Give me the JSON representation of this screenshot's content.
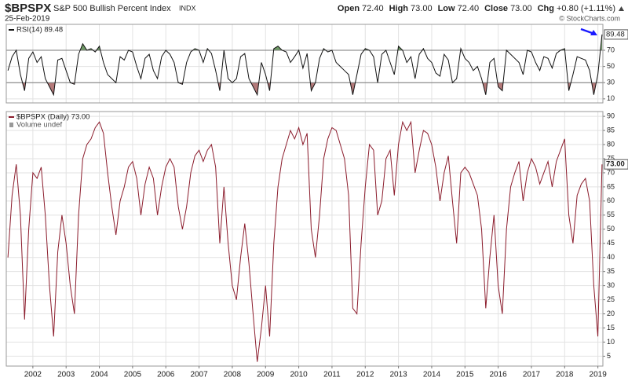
{
  "header": {
    "symbol": "$BPSPX",
    "name": "S&P 500 Bullish Percent Index",
    "exchange": "INDX",
    "date": "25-Feb-2019",
    "quote": [
      {
        "label": "Open",
        "value": "72.40"
      },
      {
        "label": "High",
        "value": "73.00"
      },
      {
        "label": "Low",
        "value": "72.40"
      },
      {
        "label": "Close",
        "value": "73.00"
      },
      {
        "label": "Chg",
        "value": "+0.80 (+1.11%)"
      }
    ],
    "credit": "© StockCharts.com"
  },
  "chart_data": [
    {
      "type": "line",
      "xlim": [
        2001.2,
        2019.15
      ],
      "ylim": [
        5,
        102
      ],
      "yticks": [
        10,
        30,
        50,
        70
      ],
      "grid": true,
      "thresholds": [
        30,
        70
      ],
      "overbought_color": "#6f9a66",
      "oversold_color": "#b57a7a",
      "x": [
        2001.25,
        2001.375,
        2001.5,
        2001.625,
        2001.75,
        2001.875,
        2002,
        2002.125,
        2002.25,
        2002.375,
        2002.5,
        2002.625,
        2002.75,
        2002.875,
        2003,
        2003.125,
        2003.25,
        2003.375,
        2003.5,
        2003.625,
        2003.75,
        2003.875,
        2004,
        2004.125,
        2004.25,
        2004.375,
        2004.5,
        2004.625,
        2004.75,
        2004.875,
        2005,
        2005.125,
        2005.25,
        2005.375,
        2005.5,
        2005.625,
        2005.75,
        2005.875,
        2006,
        2006.125,
        2006.25,
        2006.375,
        2006.5,
        2006.625,
        2006.75,
        2006.875,
        2007,
        2007.125,
        2007.25,
        2007.375,
        2007.5,
        2007.625,
        2007.75,
        2007.875,
        2008,
        2008.125,
        2008.25,
        2008.375,
        2008.5,
        2008.625,
        2008.75,
        2008.875,
        2009,
        2009.125,
        2009.25,
        2009.375,
        2009.5,
        2009.625,
        2009.75,
        2009.875,
        2010,
        2010.125,
        2010.25,
        2010.375,
        2010.5,
        2010.625,
        2010.75,
        2010.875,
        2011,
        2011.125,
        2011.25,
        2011.375,
        2011.5,
        2011.625,
        2011.75,
        2011.875,
        2012,
        2012.125,
        2012.25,
        2012.375,
        2012.5,
        2012.625,
        2012.75,
        2012.875,
        2013,
        2013.125,
        2013.25,
        2013.375,
        2013.5,
        2013.625,
        2013.75,
        2013.875,
        2014,
        2014.125,
        2014.25,
        2014.375,
        2014.5,
        2014.625,
        2014.75,
        2014.875,
        2015,
        2015.125,
        2015.25,
        2015.375,
        2015.5,
        2015.625,
        2015.75,
        2015.875,
        2016,
        2016.125,
        2016.25,
        2016.375,
        2016.5,
        2016.625,
        2016.75,
        2016.875,
        2017,
        2017.125,
        2017.25,
        2017.375,
        2017.5,
        2017.625,
        2017.75,
        2017.875,
        2018,
        2018.125,
        2018.25,
        2018.375,
        2018.5,
        2018.625,
        2018.75,
        2018.875,
        2019,
        2019.125
      ],
      "series": [
        {
          "name": "RSI(14) 89.48",
          "color": "#111111",
          "values": [
            45,
            62,
            70,
            40,
            20,
            60,
            68,
            55,
            62,
            35,
            25,
            15,
            58,
            60,
            45,
            30,
            28,
            65,
            78,
            70,
            72,
            68,
            75,
            55,
            40,
            35,
            30,
            62,
            58,
            70,
            68,
            50,
            35,
            60,
            65,
            45,
            35,
            62,
            70,
            65,
            55,
            30,
            28,
            55,
            68,
            72,
            70,
            55,
            72,
            66,
            45,
            20,
            70,
            35,
            30,
            35,
            62,
            66,
            35,
            25,
            15,
            55,
            40,
            20,
            72,
            75,
            70,
            68,
            55,
            62,
            70,
            48,
            66,
            20,
            30,
            60,
            72,
            68,
            70,
            55,
            50,
            45,
            40,
            15,
            40,
            65,
            72,
            70,
            62,
            30,
            65,
            70,
            55,
            40,
            75,
            70,
            55,
            62,
            35,
            65,
            72,
            60,
            55,
            42,
            38,
            65,
            58,
            30,
            35,
            72,
            60,
            55,
            45,
            50,
            35,
            15,
            55,
            60,
            25,
            20,
            70,
            65,
            60,
            55,
            40,
            70,
            68,
            55,
            45,
            62,
            60,
            48,
            66,
            70,
            72,
            20,
            40,
            62,
            60,
            58,
            45,
            15,
            40,
            89.48
          ]
        }
      ]
    },
    {
      "type": "line",
      "xlim": [
        2001.2,
        2019.15
      ],
      "ylim": [
        1.5,
        91.7
      ],
      "yticks": [
        5,
        10,
        15,
        20,
        25,
        30,
        35,
        40,
        45,
        50,
        55,
        60,
        65,
        70,
        75,
        80,
        85,
        90
      ],
      "xticks": [
        2002,
        2003,
        2004,
        2005,
        2006,
        2007,
        2008,
        2009,
        2010,
        2011,
        2012,
        2013,
        2014,
        2015,
        2016,
        2017,
        2018,
        2019
      ],
      "grid": true,
      "volume_label": "Volume undef",
      "last_value_label": "73.00",
      "x": [
        2001.25,
        2001.375,
        2001.5,
        2001.625,
        2001.75,
        2001.875,
        2002,
        2002.125,
        2002.25,
        2002.375,
        2002.5,
        2002.625,
        2002.75,
        2002.875,
        2003,
        2003.125,
        2003.25,
        2003.375,
        2003.5,
        2003.625,
        2003.75,
        2003.875,
        2004,
        2004.125,
        2004.25,
        2004.375,
        2004.5,
        2004.625,
        2004.75,
        2004.875,
        2005,
        2005.125,
        2005.25,
        2005.375,
        2005.5,
        2005.625,
        2005.75,
        2005.875,
        2006,
        2006.125,
        2006.25,
        2006.375,
        2006.5,
        2006.625,
        2006.75,
        2006.875,
        2007,
        2007.125,
        2007.25,
        2007.375,
        2007.5,
        2007.625,
        2007.75,
        2007.875,
        2008,
        2008.125,
        2008.25,
        2008.375,
        2008.5,
        2008.625,
        2008.75,
        2008.875,
        2009,
        2009.125,
        2009.25,
        2009.375,
        2009.5,
        2009.625,
        2009.75,
        2009.875,
        2010,
        2010.125,
        2010.25,
        2010.375,
        2010.5,
        2010.625,
        2010.75,
        2010.875,
        2011,
        2011.125,
        2011.25,
        2011.375,
        2011.5,
        2011.625,
        2011.75,
        2011.875,
        2012,
        2012.125,
        2012.25,
        2012.375,
        2012.5,
        2012.625,
        2012.75,
        2012.875,
        2013,
        2013.125,
        2013.25,
        2013.375,
        2013.5,
        2013.625,
        2013.75,
        2013.875,
        2014,
        2014.125,
        2014.25,
        2014.375,
        2014.5,
        2014.625,
        2014.75,
        2014.875,
        2015,
        2015.125,
        2015.25,
        2015.375,
        2015.5,
        2015.625,
        2015.75,
        2015.875,
        2016,
        2016.125,
        2016.25,
        2016.375,
        2016.5,
        2016.625,
        2016.75,
        2016.875,
        2017,
        2017.125,
        2017.25,
        2017.375,
        2017.5,
        2017.625,
        2017.75,
        2017.875,
        2018,
        2018.125,
        2018.25,
        2018.375,
        2018.5,
        2018.625,
        2018.75,
        2018.875,
        2019,
        2019.125
      ],
      "series": [
        {
          "name": "$BPSPX (Daily) 73.00",
          "color": "#8b1c2c",
          "values": [
            40,
            62,
            73,
            55,
            18,
            50,
            70,
            68,
            72,
            55,
            30,
            12,
            42,
            55,
            45,
            30,
            20,
            55,
            75,
            80,
            82,
            86,
            88,
            84,
            70,
            58,
            48,
            60,
            65,
            72,
            74,
            68,
            55,
            66,
            72,
            68,
            55,
            65,
            72,
            75,
            72,
            58,
            50,
            58,
            70,
            76,
            78,
            74,
            78,
            80,
            72,
            45,
            65,
            45,
            30,
            25,
            40,
            52,
            38,
            20,
            3,
            15,
            30,
            12,
            45,
            65,
            75,
            80,
            85,
            82,
            86,
            80,
            84,
            50,
            40,
            55,
            75,
            82,
            86,
            85,
            80,
            75,
            62,
            22,
            20,
            45,
            65,
            80,
            78,
            55,
            60,
            75,
            78,
            62,
            80,
            88,
            85,
            88,
            70,
            78,
            85,
            84,
            80,
            72,
            60,
            70,
            76,
            60,
            45,
            70,
            72,
            70,
            66,
            62,
            50,
            22,
            40,
            55,
            30,
            20,
            50,
            65,
            70,
            74,
            60,
            70,
            75,
            72,
            66,
            70,
            74,
            65,
            74,
            78,
            82,
            55,
            45,
            62,
            66,
            68,
            60,
            30,
            12,
            73
          ]
        }
      ]
    }
  ]
}
